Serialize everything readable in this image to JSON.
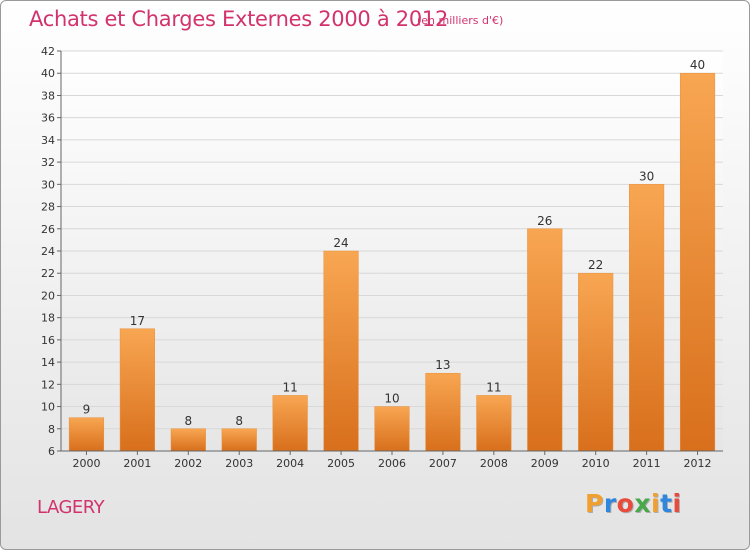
{
  "header": {
    "title": "Achats et Charges Externes 2000 à 2012",
    "subtitle": "(en milliers d'€)"
  },
  "footer": {
    "commune": "LAGERY",
    "logo_text": "Proxiti"
  },
  "colors": {
    "title": "#d2336c",
    "bar_top": "#f8a652",
    "bar_bottom": "#d86f1c",
    "grid": "#d8d8d8",
    "logo": [
      "#f0a030",
      "#2e86de",
      "#e84b3c",
      "#4aa84a",
      "#f0a030",
      "#2e86de",
      "#e84b3c"
    ]
  },
  "chart_data": {
    "type": "bar",
    "title": "Achats et Charges Externes 2000 à 2012",
    "subtitle": "(en milliers d'€)",
    "categories": [
      "2000",
      "2001",
      "2002",
      "2003",
      "2004",
      "2005",
      "2006",
      "2007",
      "2008",
      "2009",
      "2010",
      "2011",
      "2012"
    ],
    "values": [
      9,
      17,
      8,
      8,
      11,
      24,
      10,
      13,
      11,
      26,
      22,
      30,
      40
    ],
    "ylim": [
      6,
      42
    ],
    "yticks": [
      6,
      8,
      10,
      12,
      14,
      16,
      18,
      20,
      22,
      24,
      26,
      28,
      30,
      32,
      34,
      36,
      38,
      40,
      42
    ],
    "grid": true,
    "xlabel": "",
    "ylabel": ""
  }
}
